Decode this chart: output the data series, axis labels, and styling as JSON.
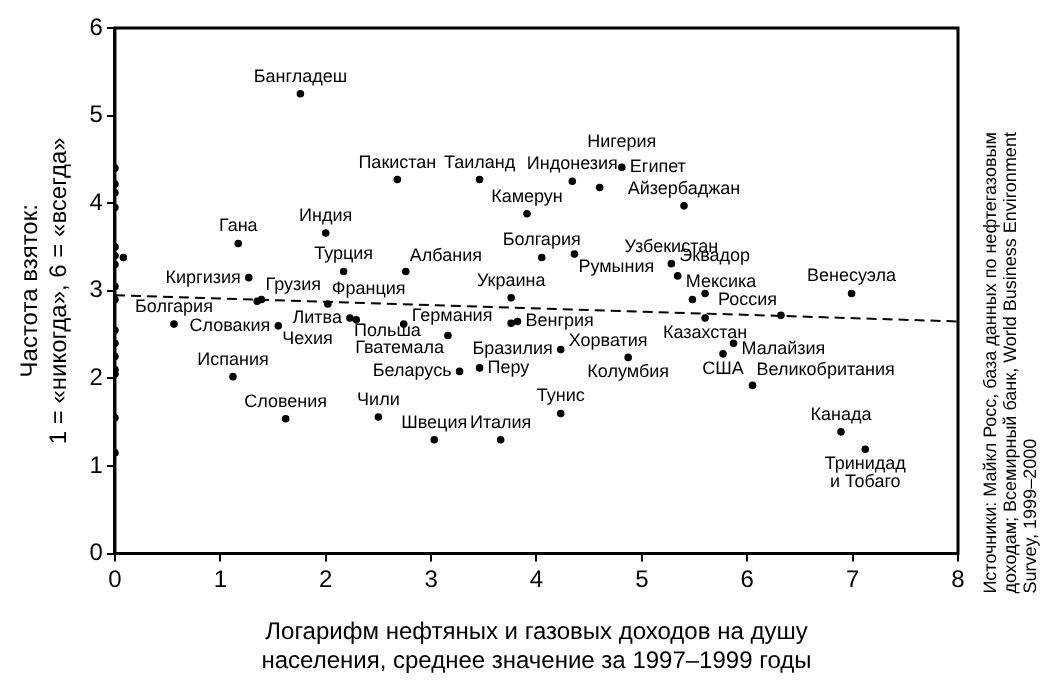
{
  "chart_data": {
    "type": "scatter",
    "xlabel": "Логарифм нефтяных и газовых доходов на душу\nнаселения, среднее значение за 1997–1999 годы",
    "ylabel": "Частота взяток:\n1 = «никогда», 6 = «всегда»",
    "xlim": [
      0,
      8
    ],
    "xticks": [
      0,
      1,
      2,
      3,
      4,
      5,
      6,
      7,
      8
    ],
    "ylim": [
      0,
      6
    ],
    "yticks": [
      0,
      1,
      2,
      3,
      4,
      5,
      6
    ],
    "grid": false,
    "legend": false,
    "marker": "circle",
    "series": [
      {
        "color": "#000000",
        "x": [
          0,
          0,
          0,
          0,
          0,
          0,
          0,
          0,
          0,
          0,
          0,
          0,
          0,
          0,
          0,
          0,
          0.08,
          1.76,
          2.68,
          3.46,
          4.34,
          4.6,
          4.81,
          3.91,
          5.4,
          4.05,
          4.36,
          5.28,
          5.34,
          5.48,
          5.6,
          6.32,
          5.6,
          6.99,
          3.76,
          3.76,
          3.82,
          2.74,
          4.23,
          4.87,
          5.77,
          5.87,
          6.05,
          6.89,
          7.12,
          4.23,
          3.66,
          3.03,
          3.46,
          3.27,
          3.16,
          2.23,
          2.29,
          1.55,
          0.56,
          1.12,
          1.62,
          2.5,
          2.02,
          2.17,
          2.76,
          2.0,
          1.17,
          1.27,
          1.35,
          1.39
        ],
        "values": [
          4.4,
          4.22,
          4.12,
          3.95,
          3.5,
          3.4,
          3.3,
          3.05,
          2.9,
          2.55,
          2.4,
          2.25,
          2.1,
          2.05,
          1.55,
          1.15,
          3.38,
          5.25,
          4.27,
          4.27,
          4.25,
          4.18,
          4.41,
          3.88,
          3.97,
          3.38,
          3.42,
          3.31,
          3.17,
          2.9,
          2.97,
          2.72,
          2.69,
          2.97,
          2.92,
          2.63,
          2.65,
          2.62,
          2.33,
          2.24,
          2.28,
          2.4,
          1.92,
          1.39,
          1.19,
          1.6,
          1.3,
          1.3,
          2.12,
          2.08,
          2.49,
          2.69,
          2.67,
          2.6,
          2.62,
          2.02,
          1.54,
          1.56,
          2.85,
          3.22,
          3.22,
          3.66,
          3.54,
          3.15,
          2.88,
          2.9
        ]
      },
      {
        "type": "line",
        "color": "#000000",
        "line_style": "dashed",
        "marker": "none",
        "x": [
          0,
          8
        ],
        "values": [
          2.95,
          2.65
        ]
      }
    ],
    "annotations": [
      {
        "text": "Бангладеш",
        "x": 1.76,
        "y": 5.25
      },
      {
        "text": "Пакистан",
        "x": 2.68,
        "y": 4.27
      },
      {
        "text": "Таиланд",
        "x": 3.46,
        "y": 4.27
      },
      {
        "text": "Индонезия",
        "x": 4.34,
        "y": 4.25
      },
      {
        "text": "Нигерия",
        "x": 4.81,
        "y": 4.41
      },
      {
        "text": "Египет",
        "x": 4.81,
        "y": 4.41
      },
      {
        "text": "Камерун",
        "x": 3.91,
        "y": 3.88
      },
      {
        "text": "Айзербаджан",
        "x": 5.4,
        "y": 3.97
      },
      {
        "text": "Болгария",
        "x": 4.05,
        "y": 3.38
      },
      {
        "text": "Румыния",
        "x": 4.36,
        "y": 3.42
      },
      {
        "text": "Узбекистан",
        "x": 5.28,
        "y": 3.31
      },
      {
        "text": "Эквадор",
        "x": 5.28,
        "y": 3.31
      },
      {
        "text": "Мексика",
        "x": 5.34,
        "y": 3.17
      },
      {
        "text": "Россия",
        "x": 6.32,
        "y": 2.72
      },
      {
        "text": "Венесуэла",
        "x": 6.99,
        "y": 2.97
      },
      {
        "text": "Украина",
        "x": 3.76,
        "y": 2.92
      },
      {
        "text": "Казахстан",
        "x": 5.6,
        "y": 2.69
      },
      {
        "text": "Венгрия",
        "x": 3.82,
        "y": 2.65
      },
      {
        "text": "Германия",
        "x": 2.74,
        "y": 2.62
      },
      {
        "text": "Бразилия",
        "x": 4.23,
        "y": 2.33
      },
      {
        "text": "Хорватия",
        "x": 4.23,
        "y": 2.33
      },
      {
        "text": "Колумбия",
        "x": 4.87,
        "y": 2.24
      },
      {
        "text": "США",
        "x": 5.77,
        "y": 2.28
      },
      {
        "text": "Малайзия",
        "x": 5.87,
        "y": 2.4
      },
      {
        "text": "Великобритания",
        "x": 6.05,
        "y": 1.92
      },
      {
        "text": "Канада",
        "x": 6.89,
        "y": 1.39
      },
      {
        "text": "Тринидад\nи Тобаго",
        "x": 7.12,
        "y": 1.19
      },
      {
        "text": "Тунис",
        "x": 4.23,
        "y": 1.6
      },
      {
        "text": "Италия",
        "x": 3.66,
        "y": 1.3
      },
      {
        "text": "Швеция",
        "x": 3.03,
        "y": 1.3
      },
      {
        "text": "Перу",
        "x": 3.46,
        "y": 2.12
      },
      {
        "text": "Беларусь",
        "x": 3.27,
        "y": 2.08
      },
      {
        "text": "Гватемала",
        "x": 3.16,
        "y": 2.49
      },
      {
        "text": "Польша",
        "x": 2.23,
        "y": 2.69
      },
      {
        "text": "Литва",
        "x": 2.23,
        "y": 2.69
      },
      {
        "text": "Чехия",
        "x": 1.55,
        "y": 2.6
      },
      {
        "text": "Словакия",
        "x": 1.55,
        "y": 2.6
      },
      {
        "text": "Болгария",
        "x": 0.56,
        "y": 2.62
      },
      {
        "text": "Испания",
        "x": 1.12,
        "y": 2.02
      },
      {
        "text": "Словения",
        "x": 1.62,
        "y": 1.54
      },
      {
        "text": "Чили",
        "x": 2.5,
        "y": 1.56
      },
      {
        "text": "Франция",
        "x": 2.02,
        "y": 2.85
      },
      {
        "text": "Турция",
        "x": 2.17,
        "y": 3.22
      },
      {
        "text": "Албания",
        "x": 2.76,
        "y": 3.22
      },
      {
        "text": "Индия",
        "x": 2.0,
        "y": 3.66
      },
      {
        "text": "Гана",
        "x": 1.17,
        "y": 3.54
      },
      {
        "text": "Киргизия",
        "x": 1.27,
        "y": 3.15
      },
      {
        "text": "Грузия",
        "x": 1.39,
        "y": 2.9
      },
      "Источники: Майкл Росс, база данных по нефтегазовым\nдоходам; Всемирный банк, World Business Environment\nSurvey, 1999–2000"
    ]
  }
}
